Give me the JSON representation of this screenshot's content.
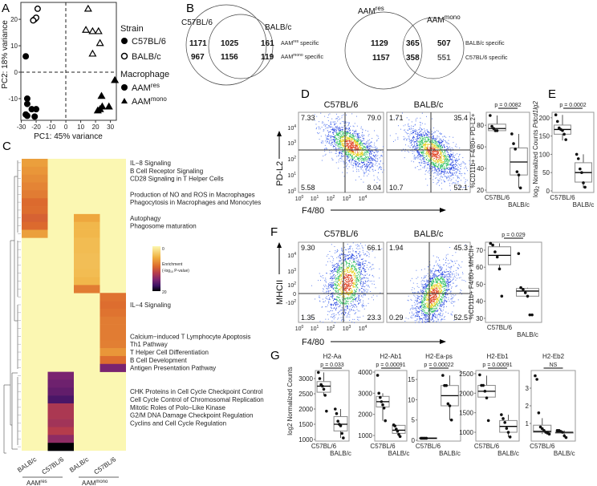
{
  "panel_letters": {
    "a": "A",
    "b": "B",
    "c": "C",
    "d": "D",
    "e": "E",
    "f": "F",
    "g": "G"
  },
  "colors": {
    "heat_zero": "#fbf7b2",
    "flow_blue": "#2233dd",
    "text": "#111111"
  },
  "panel_a": {
    "xlabel": "PC1: 45% variance",
    "ylabel": "PC2: 18% variance",
    "xticks": [
      -30,
      -20,
      -10,
      0,
      10,
      20,
      30
    ],
    "yticks": [
      20,
      10,
      0,
      -10
    ],
    "xlim": [
      -30.3,
      34
    ],
    "ylim": [
      -18.2,
      26.4
    ],
    "legend": {
      "strain_title": "Strain",
      "c57": "C57BL/6",
      "balb": "BALB/c",
      "macrophage_title": "Macrophage",
      "res_base": "AAM",
      "res_sup": "res",
      "mono_base": "AAM",
      "mono_sup": "mono"
    },
    "points": [
      {
        "x": -19,
        "y": 24,
        "strain": "BALB/c",
        "type": "res"
      },
      {
        "x": -21,
        "y": 20,
        "strain": "BALB/c",
        "type": "res"
      },
      {
        "x": -20,
        "y": 20.6,
        "strain": "BALB/c",
        "type": "res"
      },
      {
        "x": -22,
        "y": 19.6,
        "strain": "BALB/c",
        "type": "res"
      },
      {
        "x": -27,
        "y": 6,
        "strain": "C57BL/6",
        "type": "res"
      },
      {
        "x": -26,
        "y": -10,
        "strain": "C57BL/6",
        "type": "res"
      },
      {
        "x": -26,
        "y": -12,
        "strain": "C57BL/6",
        "type": "res"
      },
      {
        "x": -27,
        "y": -16,
        "strain": "C57BL/6",
        "type": "res"
      },
      {
        "x": -26,
        "y": -16.5,
        "strain": "C57BL/6",
        "type": "res"
      },
      {
        "x": -23,
        "y": -14,
        "strain": "C57BL/6",
        "type": "res"
      },
      {
        "x": -20,
        "y": -14,
        "strain": "C57BL/6",
        "type": "res"
      },
      {
        "x": -21,
        "y": -16.8,
        "strain": "C57BL/6",
        "type": "res"
      },
      {
        "x": 15,
        "y": 24,
        "strain": "BALB/c",
        "type": "mono"
      },
      {
        "x": 13.5,
        "y": 16,
        "strain": "BALB/c",
        "type": "mono"
      },
      {
        "x": 18,
        "y": 15.5,
        "strain": "BALB/c",
        "type": "mono"
      },
      {
        "x": 22,
        "y": 15.5,
        "strain": "BALB/c",
        "type": "mono"
      },
      {
        "x": 23,
        "y": 11,
        "strain": "BALB/c",
        "type": "mono"
      },
      {
        "x": 18,
        "y": 7,
        "strain": "BALB/c",
        "type": "mono"
      },
      {
        "x": 33,
        "y": -3,
        "strain": "C57BL/6",
        "type": "mono"
      },
      {
        "x": 24,
        "y": -9,
        "strain": "C57BL/6",
        "type": "mono"
      },
      {
        "x": 24.5,
        "y": -13,
        "strain": "C57BL/6",
        "type": "mono"
      },
      {
        "x": 23,
        "y": -14,
        "strain": "C57BL/6",
        "type": "mono"
      },
      {
        "x": 21.5,
        "y": -14.5,
        "strain": "C57BL/6",
        "type": "mono"
      },
      {
        "x": 29,
        "y": -13,
        "strain": "C57BL/6",
        "type": "mono"
      }
    ]
  },
  "panel_b": {
    "venn1": {
      "left_label": "C57BL/6",
      "right_label": "BALB/c",
      "row1": [
        "1171",
        "1025",
        "161"
      ],
      "row2": [
        "967",
        "1156",
        "119"
      ],
      "spec1_base": "AAM",
      "spec1_sup": "res",
      "spec1_suffix": " specific",
      "spec2_base": "AAM",
      "spec2_sup": "mono",
      "spec2_suffix": " specific"
    },
    "venn2": {
      "left_base": "AAM",
      "left_sup": "res",
      "right_base": "AAM",
      "right_sup": "mono",
      "row1": [
        "1129",
        "365",
        "507"
      ],
      "row2": [
        "1157",
        "358",
        "551"
      ],
      "spec1": "BALB/c specific",
      "spec2": "C57BL/6 specific"
    }
  },
  "panel_c": {
    "columns": [
      "BALB/c",
      "C57BL/6",
      "BALB/c",
      "C57BL/6"
    ],
    "group1_base": "AAM",
    "group1_sup": "res",
    "group2_base": "AAM",
    "group2_sup": "mono",
    "colorbar": {
      "max": "20",
      "min": "0",
      "title": "Enrichment",
      "subtitle_a": "(-log",
      "subtitle_sub": "10",
      "subtitle_b": " P-value)"
    },
    "pathways": [
      {
        "row": 0.5,
        "label": "IL−8 Signaling"
      },
      {
        "row": 1.5,
        "label": "B Cell Receptor Signaling"
      },
      {
        "row": 2.5,
        "label": "CD28 Signaling in T Helper Cells"
      },
      {
        "row": 4.5,
        "label": "Production of NO and ROS in Macrophages"
      },
      {
        "row": 5.5,
        "label": "Phagocytosis in Macrophages and Monocytes"
      },
      {
        "row": 7.5,
        "label": "Autophagy"
      },
      {
        "row": 8.5,
        "label": "Phagosome maturation"
      },
      {
        "row": 18.5,
        "label": "IL−4 Signaling"
      },
      {
        "row": 22.5,
        "label": "Calcium−induced T Lymphocyte Apoptosis"
      },
      {
        "row": 23.5,
        "label": "Th1 Pathway"
      },
      {
        "row": 24.5,
        "label": "T Helper Cell Differentiation"
      },
      {
        "row": 25.5,
        "label": "B Cell Development"
      },
      {
        "row": 26.5,
        "label": "Antigen Presentation Pathway"
      },
      {
        "row": 29.5,
        "label": "CHK Proteins in Cell Cycle Checkpoint Control"
      },
      {
        "row": 30.5,
        "label": "Cell Cycle Control of Chromosomal Replication"
      },
      {
        "row": 31.5,
        "label": "Mitotic Roles of Polo−Like Kinase"
      },
      {
        "row": 32.5,
        "label": "G2/M DNA Damage Checkpoint Regulation"
      },
      {
        "row": 33.5,
        "label": "Cyclins and Cell Cycle Regulation"
      }
    ],
    "blocks": [
      {
        "col": 0,
        "start": 0,
        "values": [
          6,
          6.5,
          7,
          7.5,
          8,
          9,
          8.8,
          9.5,
          9,
          6
        ]
      },
      {
        "col": 2,
        "start": 7,
        "values": [
          5.5,
          4.5,
          4.5,
          4.2,
          4.2,
          4,
          4,
          4.2,
          4.5,
          8
        ]
      },
      {
        "col": 3,
        "start": 17,
        "values": [
          8.5,
          8.8,
          8.5,
          8,
          8,
          8,
          7.8,
          6.5,
          8.8,
          15
        ]
      },
      {
        "col": 1,
        "start": 27,
        "values": [
          15,
          15.5,
          16,
          17,
          12.5,
          12.5,
          13,
          12,
          14,
          20
        ]
      }
    ],
    "n_rows": 37
  },
  "panel_d": {
    "c57_title": "C57BL/6",
    "balb_title": "BALB/c",
    "ylabel": "PD-L2",
    "xlabel": "F4/80",
    "c57_quadrants": [
      "7.33",
      "79.0",
      "5.58",
      "8.04"
    ],
    "balb_quadrants": [
      "1.71",
      "35.4",
      "10.7",
      "52.1"
    ],
    "box": {
      "p": "p = 0.0082",
      "ylabel": "%CD11b+ F4/80+ PD-L2+",
      "ylim": [
        17.8,
        92
      ],
      "ticks": [
        20,
        40,
        60,
        80
      ],
      "groups": [
        {
          "name": "C57BL/6",
          "q1": 75,
          "median": 77,
          "q3": 81,
          "lo": 74,
          "hi": 89,
          "points": [
            89,
            79,
            77,
            75,
            75
          ]
        },
        {
          "name": "BALB/c",
          "q1": 34,
          "median": 46,
          "q3": 59,
          "lo": 22,
          "hi": 72,
          "points": [
            72,
            63,
            58,
            37,
            34,
            22
          ]
        }
      ]
    }
  },
  "panel_e": {
    "p": "p = 0.0002",
    "ylabel_a": "log",
    "ylabel_sub": "2",
    "ylabel_b": " Normalized Counts ",
    "ylabel_gene": "Pdcd1lg2",
    "ylim": [
      -4.4,
      215
    ],
    "ticks": [
      0,
      50,
      100,
      150,
      200
    ],
    "groups": [
      {
        "name": "C57BL/6",
        "q1": 155,
        "median": 168,
        "q3": 180,
        "lo": 138,
        "hi": 208,
        "points": [
          208,
          190,
          172,
          168,
          165,
          155,
          140
        ]
      },
      {
        "name": "BALB/c",
        "q1": 24,
        "median": 50,
        "q3": 77,
        "lo": 8,
        "hi": 100,
        "points": [
          100,
          88,
          60,
          50,
          22,
          10
        ]
      }
    ]
  },
  "panel_f": {
    "c57_title": "C57BL/6",
    "balb_title": "BALB/c",
    "ylabel": "MHCII",
    "xlabel": "F4/80",
    "c57_quadrants": [
      "9.30",
      "66.1",
      "1.35",
      "23.3"
    ],
    "balb_quadrants": [
      "1.94",
      "45.3",
      "0.29",
      "52.5"
    ],
    "box": {
      "p": "p = 0.029",
      "ylabel": "%CD11b+ F4/80+ MHCII+",
      "ylim": [
        27.6,
        74.7
      ],
      "ticks": [
        30,
        40,
        50,
        60,
        70
      ],
      "groups": [
        {
          "name": "C57BL/6",
          "q1": 61.5,
          "median": 67,
          "q3": 72,
          "lo": 59,
          "hi": 74,
          "points": [
            74,
            73,
            69,
            66,
            59,
            43
          ]
        },
        {
          "name": "BALB/c",
          "q1": 43,
          "median": 46,
          "q3": 47.5,
          "lo": 42,
          "hi": 48,
          "points": [
            68,
            48,
            47,
            45,
            43,
            32,
            32
          ]
        }
      ]
    }
  },
  "panel_g": {
    "ylabel": "log2 Normalized Counts",
    "genes": [
      {
        "title": "H2-Aa",
        "p": "p = 0.033",
        "ylim": [
          947,
          3263
        ],
        "ticks": [
          1000,
          1500,
          2000,
          2500,
          3000
        ],
        "groups": [
          {
            "name": "C57BL/6",
            "q1": 2550,
            "median": 2750,
            "q3": 2900,
            "lo": 2450,
            "hi": 3200,
            "points": [
              3200,
              3000,
              2800,
              2750,
              2650,
              2450,
              1930
            ]
          },
          {
            "name": "BALB/c",
            "q1": 1280,
            "median": 1500,
            "q3": 1750,
            "lo": 1050,
            "hi": 2000,
            "points": [
              2000,
              1850,
              1600,
              1500,
              1450,
              1200,
              1050
            ]
          }
        ]
      },
      {
        "title": "H2-Ab1",
        "p": "p = 0.00091",
        "ylim": [
          734,
          4076
        ],
        "ticks": [
          1000,
          2000,
          3000,
          4000
        ],
        "groups": [
          {
            "name": "C57BL/6",
            "q1": 2350,
            "median": 2600,
            "q3": 2850,
            "lo": 1700,
            "hi": 3000,
            "points": [
              3850,
              3000,
              2800,
              2600,
              2450,
              2300,
              1700
            ]
          },
          {
            "name": "BALB/c",
            "q1": 1100,
            "median": 1250,
            "q3": 1480,
            "lo": 950,
            "hi": 1500,
            "points": [
              1500,
              1450,
              1300,
              1200,
              1050,
              950
            ]
          }
        ]
      },
      {
        "title": "H2-Ea-ps",
        "p": "p = 0.00022",
        "ylim": [
          -0.2,
          17.2
        ],
        "ticks": [
          0,
          5,
          10,
          15
        ],
        "groups": [
          {
            "name": "C57BL/6",
            "q1": 0.4,
            "median": 0.5,
            "q3": 0.6,
            "lo": 0.4,
            "hi": 0.6,
            "points": [
              0.5,
              0.5,
              0.5,
              0.5
            ]
          },
          {
            "name": "BALB/c",
            "q1": 8.5,
            "median": 11,
            "q3": 13.5,
            "lo": 5,
            "hi": 16,
            "points": [
              16,
              13.5,
              13.5,
              9,
              8.5,
              5
            ]
          }
        ]
      },
      {
        "title": "H2-Eb1",
        "p": "p = 0.00091",
        "ylim": [
          774,
          2581
        ],
        "ticks": [
          1000,
          1500,
          2000,
          2500
        ],
        "groups": [
          {
            "name": "C57BL/6",
            "q1": 1900,
            "median": 2050,
            "q3": 2200,
            "lo": 1880,
            "hi": 2450,
            "points": [
              2470,
              2200,
              2200,
              2050,
              1880,
              1300
            ]
          },
          {
            "name": "BALB/c",
            "q1": 1000,
            "median": 1150,
            "q3": 1300,
            "lo": 880,
            "hi": 1450,
            "points": [
              1450,
              1350,
              1250,
              1100,
              1000,
              880
            ]
          }
        ]
      },
      {
        "title": "H2-Eb2",
        "p": "NS",
        "ylim": [
          0,
          4
        ],
        "ticks": [
          1,
          2,
          3
        ],
        "groups": [
          {
            "name": "C57BL/6",
            "q1": 0.5,
            "median": 0.55,
            "q3": 0.9,
            "lo": 0.4,
            "hi": 1.3,
            "points": [
              3.7,
              3.5,
              1.6,
              0.8,
              0.7,
              0.6,
              0.5,
              0.45,
              0.4
            ]
          },
          {
            "name": "BALB/c",
            "q1": 0.45,
            "median": 0.5,
            "q3": 0.5,
            "lo": 0.2,
            "hi": 0.6,
            "points": [
              0.6,
              0.6,
              0.55,
              0.5,
              0.3,
              0.2
            ]
          }
        ]
      }
    ]
  }
}
